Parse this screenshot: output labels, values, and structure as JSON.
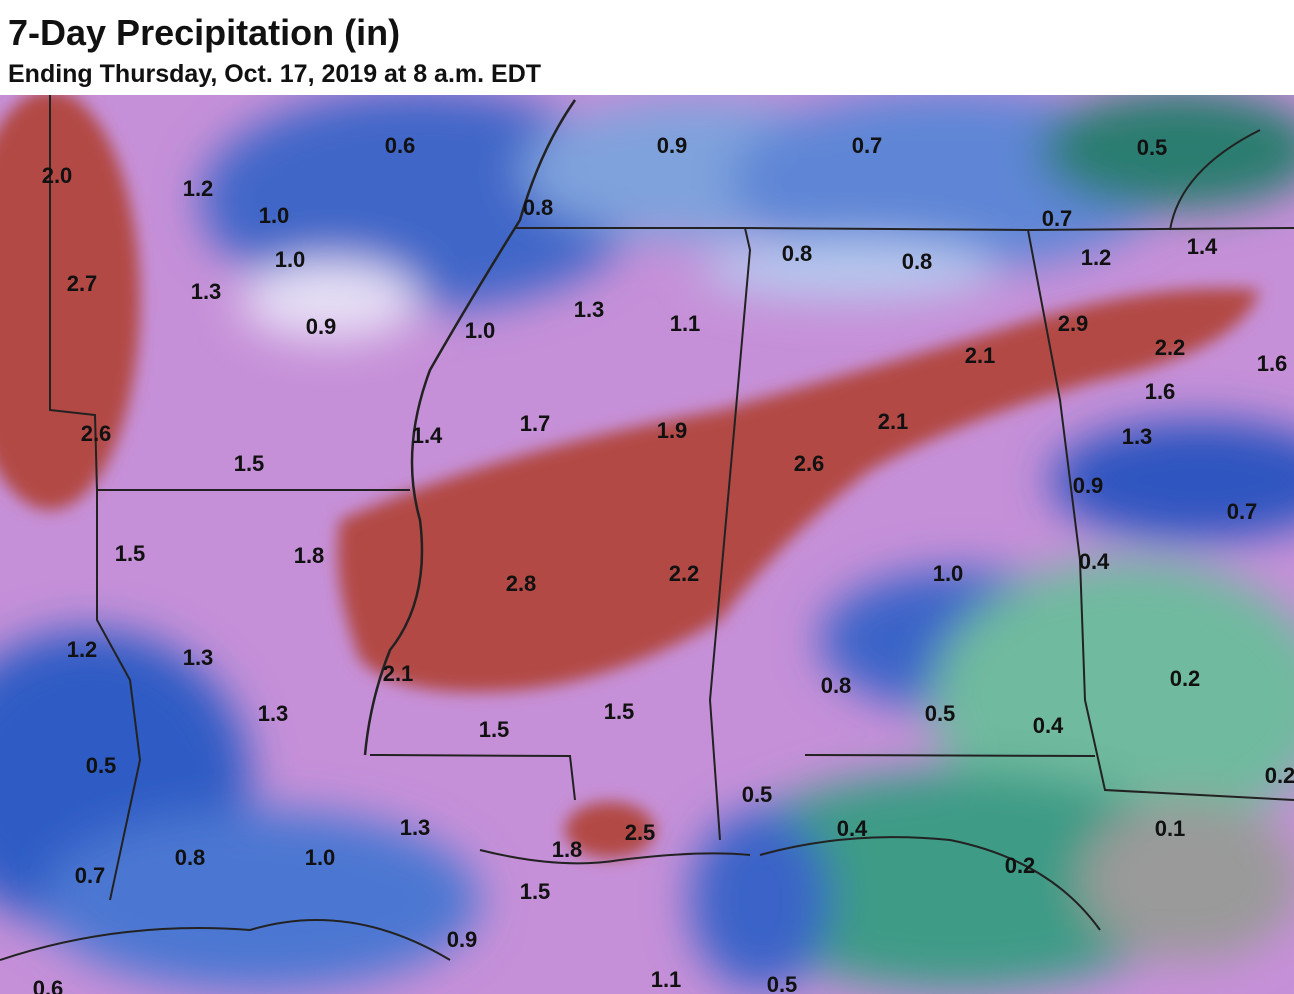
{
  "header": {
    "title": "7-Day Precipitation (in)",
    "subtitle": "Ending Thursday, Oct. 17, 2019 at 8 a.m. EDT"
  },
  "map": {
    "labels": [
      "2.0",
      "1.2",
      "0.6",
      "0.9",
      "0.7",
      "0.5",
      "1.0",
      "0.8",
      "0.7",
      "1.0",
      "0.8",
      "0.8",
      "1.2",
      "1.4",
      "2.7",
      "1.3",
      "0.9",
      "1.0",
      "1.3",
      "1.1",
      "2.9",
      "2.1",
      "2.2",
      "1.6",
      "1.6",
      "2.6",
      "1.4",
      "1.7",
      "1.9",
      "2.1",
      "1.3",
      "1.5",
      "2.6",
      "0.9",
      "0.7",
      "1.5",
      "1.8",
      "2.8",
      "2.2",
      "1.0",
      "0.4",
      "1.2",
      "1.3",
      "2.1",
      "0.2",
      "0.8",
      "1.3",
      "1.5",
      "1.5",
      "0.5",
      "0.4",
      "0.5",
      "0.2",
      "0.5",
      "1.3",
      "0.4",
      "0.1",
      "1.8",
      "2.5",
      "0.8",
      "1.0",
      "0.2",
      "0.7",
      "1.5",
      "0.9",
      "1.1",
      "0.5",
      "0.6"
    ]
  }
}
